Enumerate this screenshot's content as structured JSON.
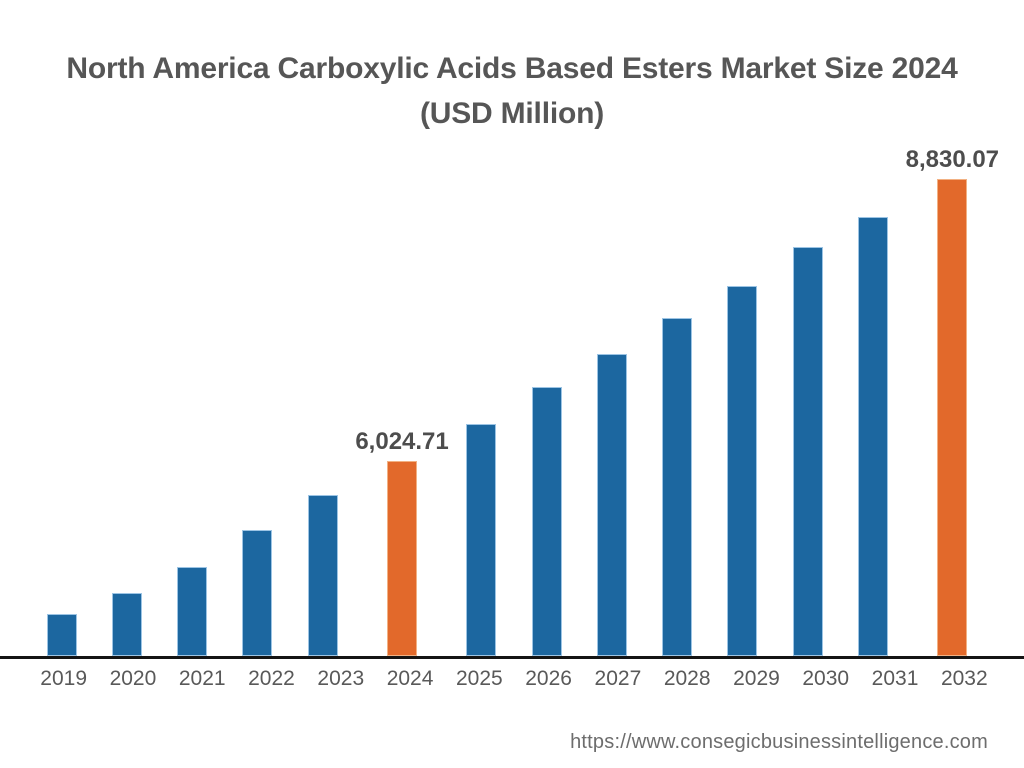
{
  "title": {
    "line1": "North America Carboxylic Acids Based Esters Market Size 2024",
    "line2": "(USD Million)"
  },
  "source_url": "https://www.consegicbusinessintelligence.com",
  "colors": {
    "bar_default": "#1c67a0",
    "bar_default_edge": "#9cc4e4",
    "bar_highlight": "#e2692b",
    "bar_highlight_edge": "#f2b183",
    "axis_line": "#141414",
    "title_text": "#565656",
    "value_label_text": "#4d4d4d",
    "tick_text": "#595959",
    "source_text": "#6d6d6d"
  },
  "chart_data": {
    "type": "bar",
    "title": "North America Carboxylic Acids Based Esters Market Size 2024 (USD Million)",
    "xlabel": "",
    "ylabel": "",
    "grid": false,
    "legend": false,
    "ylim": [
      4085,
      8860
    ],
    "categories": [
      "2019",
      "2020",
      "2021",
      "2022",
      "2023",
      "2024",
      "2025",
      "2026",
      "2027",
      "2028",
      "2029",
      "2030",
      "2031",
      "2032"
    ],
    "values": [
      4500,
      4710,
      4970,
      5340,
      5690,
      6024.71,
      6390,
      6760,
      7090,
      7450,
      7765,
      8155,
      8450,
      8830.07
    ],
    "highlighted_categories": [
      "2024",
      "2032"
    ],
    "data_labels": {
      "2024": "6,024.71",
      "2032": "8,830.07"
    }
  }
}
